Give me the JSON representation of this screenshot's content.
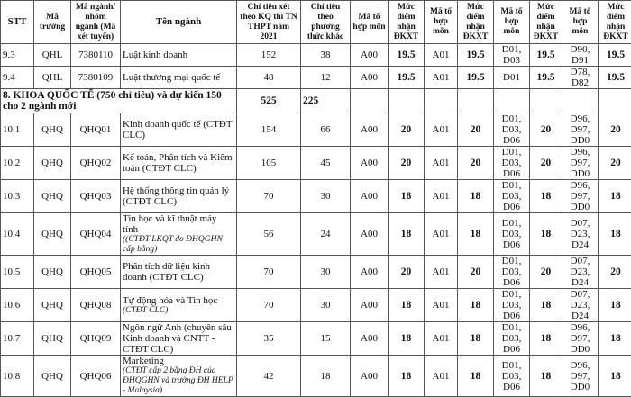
{
  "headers": [
    "STT",
    "Mã trường",
    "Mã ngành/ nhóm ngành (Mã xét tuyển)",
    "Tên ngành",
    "Chỉ tiêu xét theo KQ thi TN THPT năm 2021",
    "Chỉ tiêu theo phương thức khác",
    "Mã tổ hợp môn",
    "Mức điểm nhận ĐKXT",
    "Mã tổ hợp môn",
    "Mức điểm nhận ĐKXT",
    "Mã tổ hợp môn",
    "Mức điểm nhận ĐKXT",
    "Mã tổ hợp môn",
    "Mức điểm nhận ĐKXT"
  ],
  "rows_top": [
    {
      "stt": "9.3",
      "truong": "QHL",
      "ma": "7380110",
      "ten": "Luật kinh doanh",
      "note": "",
      "ct1": "152",
      "ct2": "38",
      "c1": "A00",
      "d1": "19.5",
      "c2": "A01",
      "d2": "19.5",
      "c3": "D01, D03",
      "d3": "19.5",
      "c4": "D90, D91",
      "d4": "19.5"
    },
    {
      "stt": "9.4",
      "truong": "QHL",
      "ma": "7380109",
      "ten": "Luật thương mại quốc tế",
      "note": "",
      "ct1": "48",
      "ct2": "12",
      "c1": "A00",
      "d1": "19.5",
      "c2": "A01",
      "d2": "19.5",
      "c3": "D01",
      "d3": "19.5",
      "c4": "D78, D82",
      "d4": "19.5"
    }
  ],
  "section": {
    "title": "8. KHOA QUỐC TẾ (750 chỉ tiêu) và dự kiến 150 cho 2 ngành mới",
    "ct1": "525",
    "ct2": "225"
  },
  "rows": [
    {
      "stt": "10.1",
      "truong": "QHQ",
      "ma": "QHQ01",
      "ten": "Kinh doanh quốc tế (CTĐT CLC)",
      "note": "",
      "ct1": "154",
      "ct2": "66",
      "c1": "A00",
      "d1": "20",
      "c2": "A01",
      "d2": "20",
      "c3": "D01, D03, D06",
      "d3": "20",
      "c4": "D96, D97, DD0",
      "d4": "20"
    },
    {
      "stt": "10.2",
      "truong": "QHQ",
      "ma": "QHQ02",
      "ten": "Kế toán, Phân tích và Kiểm toán (CTĐT CLC)",
      "note": "",
      "ct1": "105",
      "ct2": "45",
      "c1": "A00",
      "d1": "20",
      "c2": "A01",
      "d2": "20",
      "c3": "D01, D03, D06",
      "d3": "20",
      "c4": "D96, D97, DD0",
      "d4": "20"
    },
    {
      "stt": "10.3",
      "truong": "QHQ",
      "ma": "QHQ03",
      "ten": "Hệ thống thông tin quản lý (CTĐT CLC)",
      "note": "",
      "ct1": "70",
      "ct2": "30",
      "c1": "A00",
      "d1": "18",
      "c2": "A01",
      "d2": "18",
      "c3": "D01, D03, D06",
      "d3": "18",
      "c4": "D96, D97, DD0",
      "d4": "18"
    },
    {
      "stt": "10.4",
      "truong": "QHQ",
      "ma": "QHQ04",
      "ten": "Tin học và kĩ thuật máy tính",
      "note": "((CTĐT LKQT do ĐHQGHN cấp bằng)",
      "ct1": "56",
      "ct2": "24",
      "c1": "A00",
      "d1": "18",
      "c2": "A01",
      "d2": "18",
      "c3": "D01, D03, D06",
      "d3": "18",
      "c4": "D07, D23, D24",
      "d4": "18"
    },
    {
      "stt": "10.5",
      "truong": "QHQ",
      "ma": "QHQ05",
      "ten": "Phân tích dữ liệu kinh doanh (CTĐT CLC)",
      "note": "",
      "ct1": "70",
      "ct2": "30",
      "c1": "A00",
      "d1": "20",
      "c2": "A01",
      "d2": "20",
      "c3": "D01, D03, D06",
      "d3": "20",
      "c4": "D07, D23, D24",
      "d4": "20"
    },
    {
      "stt": "10.6",
      "truong": "QHQ",
      "ma": "QHQ08",
      "ten": "Tự động hóa và Tin học",
      "note": "(CTĐT CLC)",
      "ct1": "70",
      "ct2": "30",
      "c1": "A00",
      "d1": "18",
      "c2": "A01",
      "d2": "18",
      "c3": "D01, D03, D06",
      "d3": "18",
      "c4": "D07, D23, D24",
      "d4": "18"
    },
    {
      "stt": "10.7",
      "truong": "QHQ",
      "ma": "QHQ09",
      "ten": "Ngôn ngữ Anh (chuyên sâu Kinh doanh và CNTT - CTĐT CLC)",
      "note": "",
      "ct1": "35",
      "ct2": "15",
      "c1": "A00",
      "d1": "18",
      "c2": "A01",
      "d2": "18",
      "c3": "D01, D03, D06",
      "d3": "18",
      "c4": "D96, D97, DD0",
      "d4": "18"
    },
    {
      "stt": "10.8",
      "truong": "QHQ",
      "ma": "QHQ06",
      "ten": "Marketing",
      "note": "(CTĐT cấp 2 bằng ĐH của ĐHQGHN và trường ĐH HELP - Malaysia)",
      "ct1": "42",
      "ct2": "18",
      "c1": "A00",
      "d1": "18",
      "c2": "A01",
      "d2": "18",
      "c3": "D01, D03, D06",
      "d3": "18",
      "c4": "D96, D97, DD0",
      "d4": "18"
    }
  ]
}
